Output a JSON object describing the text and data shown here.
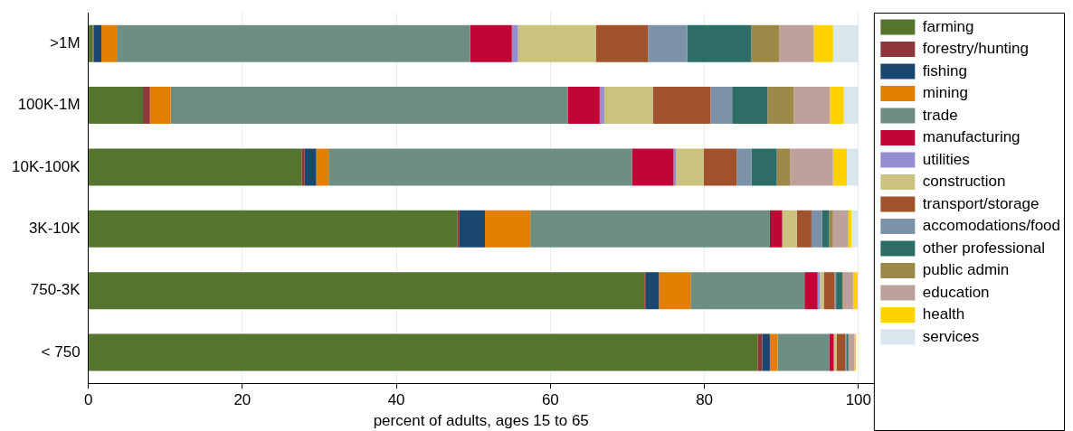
{
  "chart_data": {
    "type": "bar",
    "orientation": "horizontal",
    "stacked": true,
    "xlabel": "percent of adults, ages 15 to 65",
    "categories": [
      ">1M",
      "100K-1M",
      "10K-100K",
      "3K-10K",
      "750-3K",
      "< 750"
    ],
    "xlim": [
      0,
      102
    ],
    "xticks": [
      0,
      20,
      40,
      60,
      80,
      100
    ],
    "grid": "x",
    "legend": "right",
    "series": [
      {
        "name": "farming",
        "color": "#55752f",
        "values": [
          0.6,
          7.1,
          27.7,
          47.9,
          72.2,
          86.9
        ]
      },
      {
        "name": "forestry/hunting",
        "color": "#90353b",
        "values": [
          0.1,
          0.9,
          0.4,
          0.3,
          0.2,
          0.6
        ]
      },
      {
        "name": "fishing",
        "color": "#1a476f",
        "values": [
          1.0,
          0,
          1.5,
          3.3,
          1.7,
          1.0
        ]
      },
      {
        "name": "mining",
        "color": "#e37e00",
        "values": [
          2.0,
          2.7,
          1.6,
          5.9,
          4.1,
          1.0
        ]
      },
      {
        "name": "trade",
        "color": "#6e8e84",
        "values": [
          45.9,
          51.6,
          39.4,
          31.1,
          14.8,
          6.7
        ]
      },
      {
        "name": "manufacturing",
        "color": "#c10534",
        "values": [
          5.4,
          4.1,
          5.4,
          1.6,
          1.7,
          0.6
        ]
      },
      {
        "name": "utilities",
        "color": "#938dd2",
        "values": [
          0.8,
          0.6,
          0.3,
          null,
          0.3,
          null
        ]
      },
      {
        "name": "construction",
        "color": "#cac27e",
        "values": [
          10.1,
          6.3,
          3.6,
          1.9,
          0.5,
          0.4
        ]
      },
      {
        "name": "transport/storage",
        "color": "#a0522d",
        "values": [
          6.8,
          7.5,
          4.3,
          1.9,
          1.4,
          1.1
        ]
      },
      {
        "name": "accomodations/food",
        "color": "#7b92a8",
        "values": [
          5.1,
          2.8,
          1.9,
          1.4,
          0.2,
          0.2
        ]
      },
      {
        "name": "other professional",
        "color": "#2d6d66",
        "values": [
          8.3,
          4.6,
          3.3,
          0.9,
          0.8,
          0.2
        ]
      },
      {
        "name": "public admin",
        "color": "#9c8847",
        "values": [
          3.6,
          3.4,
          1.7,
          0.5,
          0.1,
          null
        ]
      },
      {
        "name": "education",
        "color": "#bfa19c",
        "values": [
          4.5,
          4.7,
          5.6,
          2.0,
          1.3,
          0.8
        ]
      },
      {
        "name": "health",
        "color": "#ffd200",
        "values": [
          2.5,
          1.8,
          1.8,
          0.4,
          0.6,
          0.2
        ]
      },
      {
        "name": "services",
        "color": "#d9e6eb",
        "values": [
          3.3,
          1.9,
          1.5,
          0.8,
          null,
          null
        ]
      }
    ]
  }
}
